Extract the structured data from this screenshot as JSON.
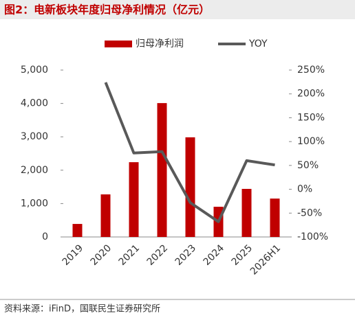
{
  "chart_data": {
    "type": "combo",
    "title": "图2：电新板块年度归母净利情况（亿元）",
    "source": "资料来源：iFinD，国联民生证券研究所",
    "categories": [
      "2019",
      "2020",
      "2021",
      "2022",
      "2023",
      "2024",
      "2025",
      "2026H1"
    ],
    "series": [
      {
        "name": "归母净利润",
        "type": "bar",
        "color": "#c00000",
        "values": [
          390,
          1275,
          2240,
          4010,
          2985,
          905,
          1440,
          1150
        ]
      },
      {
        "name": "YOY",
        "type": "line",
        "axis": "y2",
        "color": "#595959",
        "values": [
          null,
          224,
          76,
          79,
          -28,
          -68,
          60,
          51
        ]
      }
    ],
    "ylim": [
      0,
      5000
    ],
    "yticks": [
      0,
      {
        "value": 1000,
        "label": "1,000"
      },
      {
        "value": 2000,
        "label": "2,000"
      },
      {
        "value": 3000,
        "label": "3,000"
      },
      {
        "value": 4000,
        "label": "4,000"
      },
      {
        "value": 5000,
        "label": "5,000"
      }
    ],
    "y2lim": [
      -100,
      250
    ],
    "y2ticks": [
      {
        "value": -100,
        "label": "-100%"
      },
      {
        "value": -50,
        "label": "-50%"
      },
      {
        "value": 0,
        "label": "0%"
      },
      {
        "value": 50,
        "label": "50%"
      },
      {
        "value": 100,
        "label": "100%"
      },
      {
        "value": 150,
        "label": "150%"
      },
      {
        "value": 200,
        "label": "200%"
      },
      {
        "value": 250,
        "label": "250%"
      }
    ],
    "legend": "top"
  }
}
